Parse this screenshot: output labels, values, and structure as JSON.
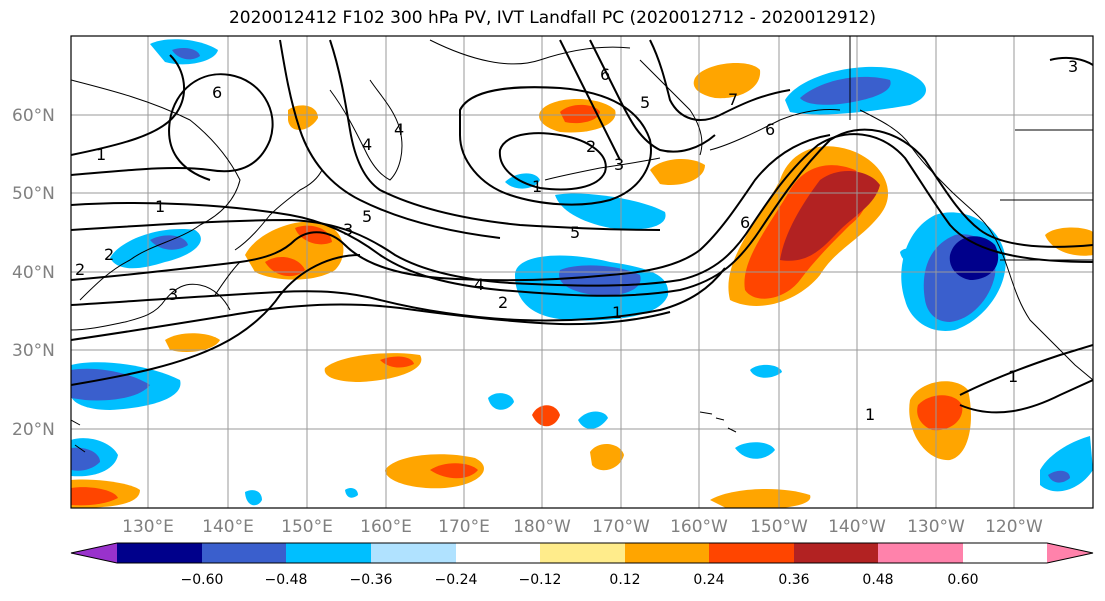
{
  "title": "2020012412 F102 300 hPa PV, IVT Landfall PC (2020012712 - 2020012912)",
  "lat_labels": [
    "60°N",
    "50°N",
    "40°N",
    "30°N",
    "20°N"
  ],
  "lon_labels": [
    "130°E",
    "140°E",
    "150°E",
    "160°E",
    "170°E",
    "180°W",
    "170°W",
    "160°W",
    "150°W",
    "140°W",
    "130°W",
    "120°W"
  ],
  "colorbar": {
    "ticks": [
      "−0.60",
      "−0.48",
      "−0.36",
      "−0.24",
      "−0.12",
      "0.12",
      "0.24",
      "0.36",
      "0.48",
      "0.60"
    ],
    "colors": [
      "#9932cc",
      "#00008b",
      "#3a5fcd",
      "#00bfff",
      "#b0e2ff",
      "#ffffff",
      "#ffec8b",
      "#ffa500",
      "#ff4500",
      "#b22222",
      "#ff82ab"
    ]
  },
  "contour_labels": [
    "1",
    "1",
    "2",
    "2",
    "3",
    "3",
    "4",
    "4",
    "5",
    "5",
    "6",
    "6",
    "1",
    "2",
    "3",
    "1",
    "2",
    "4",
    "5",
    "6",
    "6",
    "1",
    "3",
    "1",
    "7"
  ]
}
